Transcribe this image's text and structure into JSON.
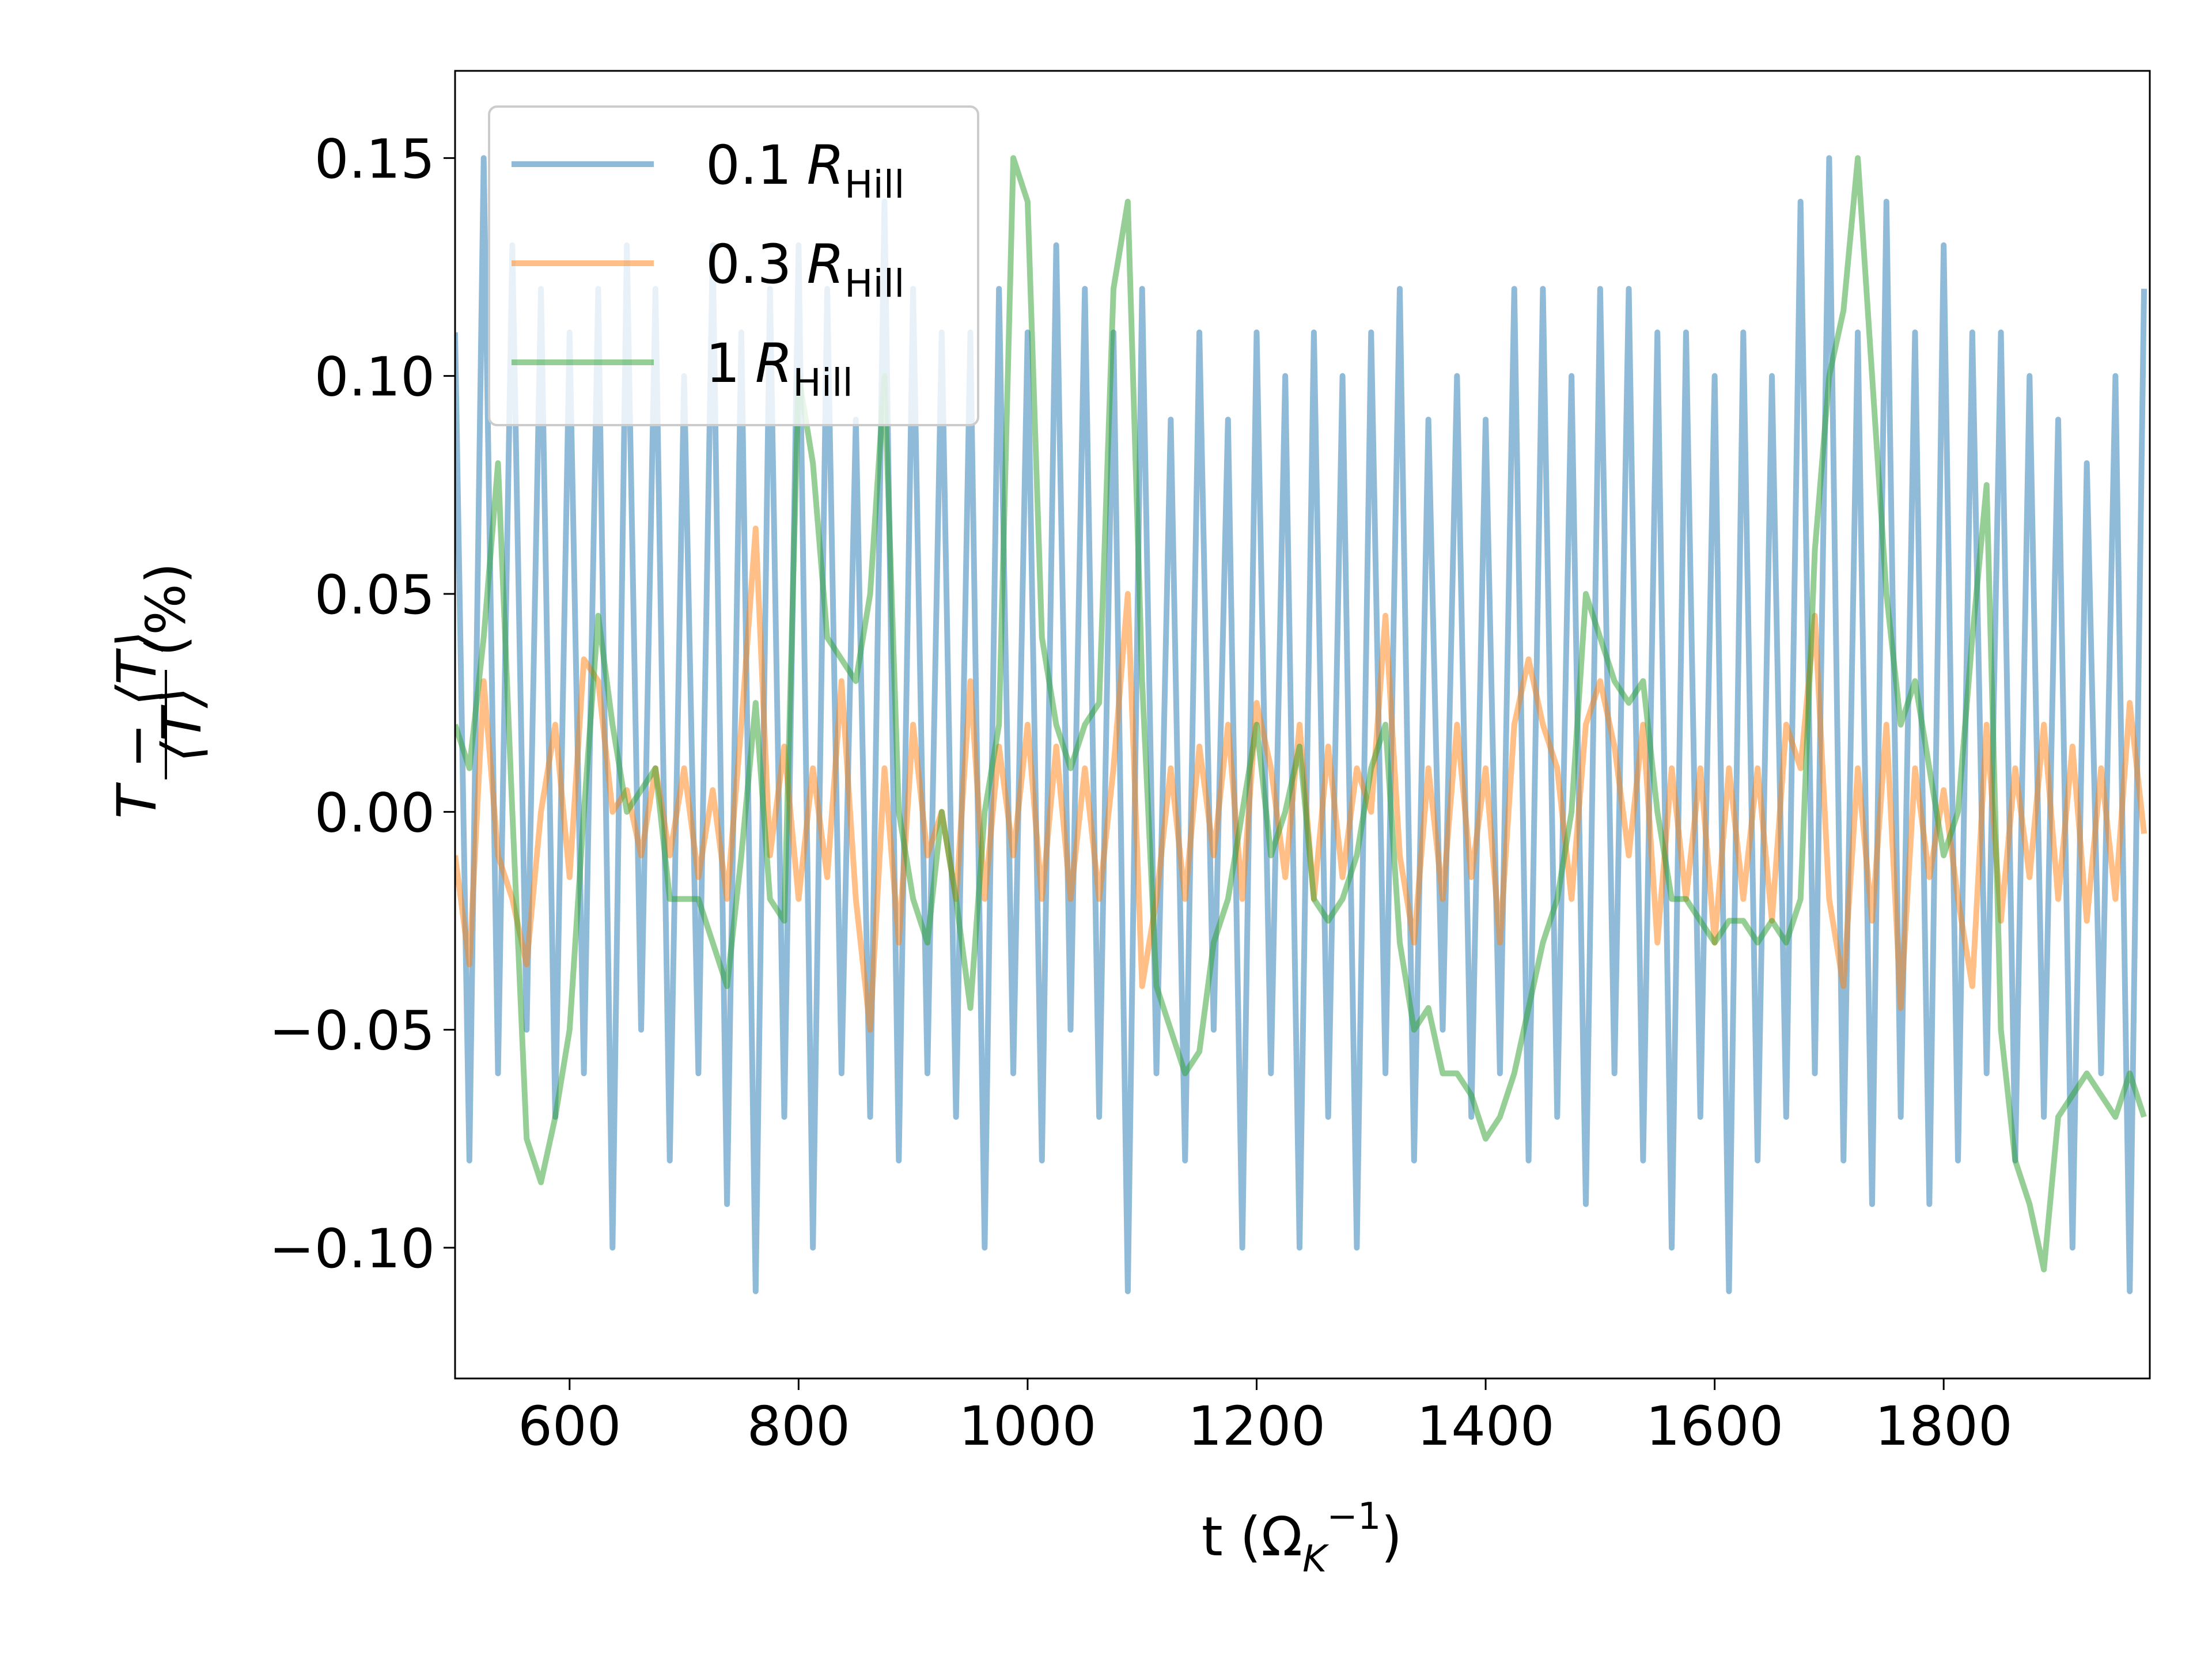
{
  "chart_data": {
    "type": "line",
    "xlabel": {
      "main": "t (Ω",
      "sub": "K",
      "sup": "−1",
      "end": ")"
    },
    "ylabel": {
      "numerator": "T − ⟨T⟩",
      "denominator": "⟨T⟩",
      "suffix": "(%)"
    },
    "legend_unit": "R",
    "legend_unit_sub": "Hill",
    "legend": "upper left",
    "xlim": [
      500,
      1980
    ],
    "ylim": [
      -0.13,
      0.17
    ],
    "xticks": [
      600,
      800,
      1000,
      1200,
      1400,
      1600,
      1800
    ],
    "yticks": [
      {
        "value": -0.1,
        "label": "−0.10"
      },
      {
        "value": -0.05,
        "label": "−0.05"
      },
      {
        "value": 0,
        "label": "0.00"
      },
      {
        "value": 0.05,
        "label": "0.05"
      },
      {
        "value": 0.1,
        "label": "0.10"
      },
      0.15
    ],
    "x": [
      500,
      512.5,
      525,
      537.5,
      550,
      562.5,
      575,
      587.5,
      600,
      612.5,
      625,
      637.5,
      650,
      662.5,
      675,
      687.5,
      700,
      712.5,
      725,
      737.5,
      750,
      762.5,
      775,
      787.5,
      800,
      812.5,
      825,
      837.5,
      850,
      862.5,
      875,
      887.5,
      900,
      912.5,
      925,
      937.5,
      950,
      962.5,
      975,
      987.5,
      1000,
      1012.5,
      1025,
      1037.5,
      1050,
      1062.5,
      1075,
      1087.5,
      1100,
      1112.5,
      1125,
      1137.5,
      1150,
      1162.5,
      1175,
      1187.5,
      1200,
      1212.5,
      1225,
      1237.5,
      1250,
      1262.5,
      1275,
      1287.5,
      1300,
      1312.5,
      1325,
      1337.5,
      1350,
      1362.5,
      1375,
      1387.5,
      1400,
      1412.5,
      1425,
      1437.5,
      1450,
      1462.5,
      1475,
      1487.5,
      1500,
      1512.5,
      1525,
      1537.5,
      1550,
      1562.5,
      1575,
      1587.5,
      1600,
      1612.5,
      1625,
      1637.5,
      1650,
      1662.5,
      1675,
      1687.5,
      1700,
      1712.5,
      1725,
      1737.5,
      1750,
      1762.5,
      1775,
      1787.5,
      1800,
      1812.5,
      1825,
      1837.5,
      1850,
      1862.5,
      1875,
      1887.5,
      1900,
      1912.5,
      1925,
      1937.5,
      1950,
      1962.5,
      1975
    ],
    "series": [
      {
        "name": "0.1",
        "color": "#1f77b4",
        "values": [
          0.11,
          -0.08,
          0.15,
          -0.06,
          0.13,
          -0.05,
          0.12,
          -0.07,
          0.11,
          -0.06,
          0.12,
          -0.1,
          0.13,
          -0.05,
          0.12,
          -0.08,
          0.1,
          -0.06,
          0.13,
          -0.09,
          0.11,
          -0.11,
          0.12,
          -0.07,
          0.13,
          -0.1,
          0.12,
          -0.06,
          0.09,
          -0.07,
          0.14,
          -0.08,
          0.12,
          -0.06,
          0.11,
          -0.07,
          0.11,
          -0.1,
          0.12,
          -0.06,
          0.11,
          -0.08,
          0.13,
          -0.05,
          0.12,
          -0.07,
          0.11,
          -0.11,
          0.12,
          -0.06,
          0.09,
          -0.08,
          0.11,
          -0.05,
          0.09,
          -0.1,
          0.11,
          -0.06,
          0.1,
          -0.1,
          0.11,
          -0.07,
          0.1,
          -0.1,
          0.11,
          -0.06,
          0.12,
          -0.08,
          0.09,
          -0.05,
          0.1,
          -0.07,
          0.09,
          -0.06,
          0.12,
          -0.08,
          0.12,
          -0.07,
          0.1,
          -0.09,
          0.12,
          -0.06,
          0.12,
          -0.08,
          0.11,
          -0.1,
          0.11,
          -0.07,
          0.1,
          -0.11,
          0.11,
          -0.08,
          0.1,
          -0.07,
          0.14,
          -0.06,
          0.15,
          -0.08,
          0.11,
          -0.09,
          0.14,
          -0.07,
          0.11,
          -0.09,
          0.13,
          -0.08,
          0.11,
          -0.06,
          0.11,
          -0.08,
          0.1,
          -0.07,
          0.09,
          -0.1,
          0.08,
          -0.06,
          0.1,
          -0.11,
          0.12
        ]
      },
      {
        "name": "0.3",
        "color": "#ff7f0e",
        "values": [
          -0.01,
          -0.035,
          0.03,
          -0.01,
          -0.02,
          -0.035,
          0.0,
          0.02,
          -0.015,
          0.035,
          0.03,
          0.0,
          0.005,
          -0.01,
          0.01,
          -0.01,
          0.01,
          -0.015,
          0.005,
          -0.02,
          0.02,
          0.065,
          -0.01,
          0.015,
          -0.02,
          0.01,
          -0.015,
          0.03,
          -0.02,
          -0.05,
          0.01,
          -0.03,
          0.02,
          -0.01,
          0.0,
          -0.02,
          0.03,
          -0.02,
          0.015,
          -0.01,
          0.02,
          -0.02,
          0.015,
          -0.02,
          0.01,
          -0.02,
          0.01,
          0.05,
          -0.04,
          -0.02,
          0.01,
          -0.02,
          0.015,
          -0.01,
          0.02,
          -0.02,
          0.025,
          0.01,
          -0.015,
          0.02,
          -0.02,
          0.015,
          -0.015,
          0.01,
          0.0,
          0.045,
          -0.01,
          -0.03,
          0.01,
          -0.02,
          0.02,
          -0.015,
          0.01,
          -0.03,
          0.02,
          0.035,
          0.02,
          0.01,
          -0.02,
          0.02,
          0.03,
          0.015,
          -0.01,
          0.02,
          -0.03,
          0.01,
          -0.02,
          0.01,
          -0.03,
          0.01,
          -0.02,
          0.01,
          -0.025,
          0.02,
          0.01,
          0.045,
          -0.02,
          -0.04,
          0.01,
          -0.025,
          0.02,
          -0.045,
          0.01,
          -0.015,
          0.005,
          -0.02,
          -0.04,
          0.02,
          -0.025,
          0.01,
          -0.015,
          0.02,
          -0.02,
          0.015,
          -0.025,
          0.01,
          -0.02,
          0.025,
          -0.005
        ]
      },
      {
        "name": "1",
        "color": "#2ca02c",
        "values": [
          0.02,
          0.01,
          0.04,
          0.08,
          0.0,
          -0.075,
          -0.085,
          -0.07,
          -0.05,
          0.0,
          0.045,
          0.02,
          0.0,
          0.005,
          0.01,
          -0.02,
          -0.02,
          -0.02,
          -0.03,
          -0.04,
          -0.01,
          0.025,
          -0.02,
          -0.025,
          0.1,
          0.08,
          0.04,
          0.035,
          0.03,
          0.05,
          0.1,
          0.0,
          -0.02,
          -0.03,
          0.0,
          -0.02,
          -0.045,
          0.0,
          0.02,
          0.15,
          0.14,
          0.04,
          0.02,
          0.01,
          0.02,
          0.025,
          0.12,
          0.14,
          0.03,
          -0.04,
          -0.05,
          -0.06,
          -0.055,
          -0.03,
          -0.02,
          0.0,
          0.02,
          -0.01,
          0.0,
          0.015,
          -0.02,
          -0.025,
          -0.02,
          -0.01,
          0.01,
          0.02,
          -0.03,
          -0.05,
          -0.045,
          -0.06,
          -0.06,
          -0.065,
          -0.075,
          -0.07,
          -0.06,
          -0.045,
          -0.03,
          -0.02,
          0.0,
          0.05,
          0.04,
          0.03,
          0.025,
          0.03,
          0.0,
          -0.02,
          -0.02,
          -0.025,
          -0.03,
          -0.025,
          -0.025,
          -0.03,
          -0.025,
          -0.03,
          -0.02,
          0.06,
          0.1,
          0.115,
          0.15,
          0.1,
          0.05,
          0.02,
          0.03,
          0.01,
          -0.01,
          0.0,
          0.04,
          0.075,
          -0.05,
          -0.08,
          -0.09,
          -0.105,
          -0.07,
          -0.065,
          -0.06,
          -0.065,
          -0.07,
          -0.06,
          -0.07
        ]
      }
    ]
  }
}
